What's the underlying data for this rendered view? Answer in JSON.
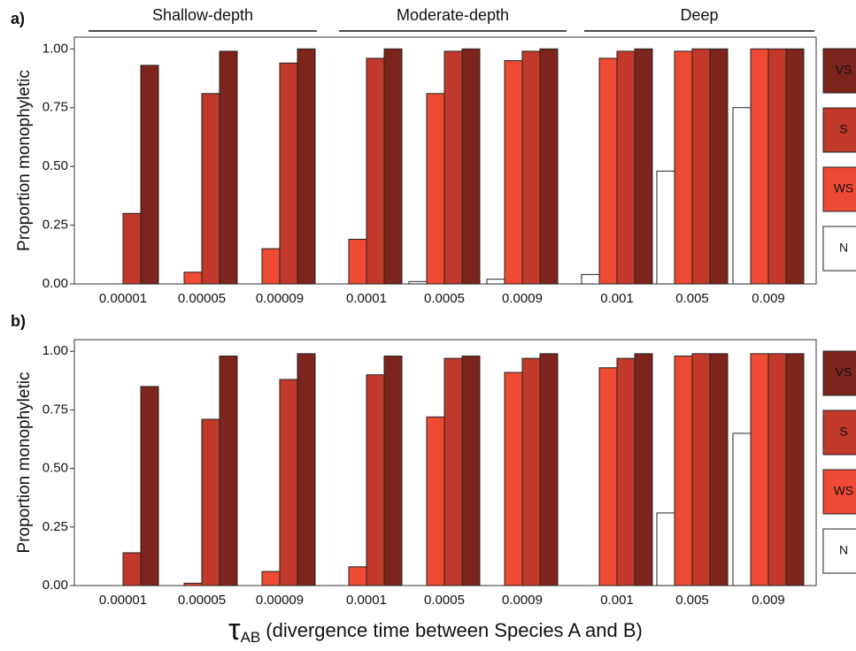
{
  "chart_data": [
    {
      "type": "bar",
      "panel_label": "a)",
      "group_labels": [
        "Shallow-depth",
        "Moderate-depth",
        "Deep"
      ],
      "y_label": "Proportion monophyletic",
      "categories": [
        "0.00001",
        "0.00005",
        "0.00009",
        "0.0001",
        "0.0005",
        "0.0009",
        "0.001",
        "0.005",
        "0.009"
      ],
      "category_colors": [
        "#3b4fa0",
        "#111111",
        "#e0282b",
        "#3b4fa0",
        "#111111",
        "#e0282b",
        "#3b4fa0",
        "#111111",
        "#e0282b"
      ],
      "series": [
        {
          "name": "N",
          "color": "#ffffff",
          "values": [
            0,
            0,
            0,
            0,
            0.01,
            0.02,
            0.04,
            0.48,
            0.75
          ]
        },
        {
          "name": "WS",
          "color": "#ef4a33",
          "values": [
            0,
            0.05,
            0.15,
            0.19,
            0.81,
            0.95,
            0.96,
            0.99,
            1.0
          ]
        },
        {
          "name": "S",
          "color": "#c0392b",
          "values": [
            0.3,
            0.81,
            0.94,
            0.96,
            0.99,
            0.99,
            0.99,
            1.0,
            1.0
          ]
        },
        {
          "name": "VS",
          "color": "#7d241c",
          "values": [
            0.93,
            0.99,
            1.0,
            1.0,
            1.0,
            1.0,
            1.0,
            1.0,
            1.0
          ]
        }
      ],
      "ylim": [
        0,
        1.05
      ],
      "yticks": [
        {
          "value": 0,
          "label": "0.00"
        },
        {
          "value": 0.25,
          "label": "0.25"
        },
        {
          "value": 0.5,
          "label": "0.50"
        },
        {
          "value": 0.75,
          "label": "0.75"
        },
        {
          "value": 1,
          "label": "1.00"
        }
      ]
    },
    {
      "type": "bar",
      "panel_label": "b)",
      "y_label": "Proportion monophyletic",
      "x_label_symbol": "τ",
      "x_label_subscript": "AB",
      "x_label": "(divergence time between Species A and B)",
      "categories": [
        "0.00001",
        "0.00005",
        "0.00009",
        "0.0001",
        "0.0005",
        "0.0009",
        "0.001",
        "0.005",
        "0.009"
      ],
      "category_colors": [
        "#3b4fa0",
        "#111111",
        "#e0282b",
        "#3b4fa0",
        "#111111",
        "#e0282b",
        "#3b4fa0",
        "#111111",
        "#e0282b"
      ],
      "series": [
        {
          "name": "N",
          "color": "#ffffff",
          "values": [
            0,
            0,
            0,
            0,
            0,
            0,
            0,
            0.31,
            0.65
          ]
        },
        {
          "name": "WS",
          "color": "#ef4a33",
          "values": [
            0,
            0.01,
            0.06,
            0.08,
            0.72,
            0.91,
            0.93,
            0.98,
            0.99
          ]
        },
        {
          "name": "S",
          "color": "#c0392b",
          "values": [
            0.14,
            0.71,
            0.88,
            0.9,
            0.97,
            0.97,
            0.97,
            0.99,
            0.99
          ]
        },
        {
          "name": "VS",
          "color": "#7d241c",
          "values": [
            0.85,
            0.98,
            0.99,
            0.98,
            0.98,
            0.99,
            0.99,
            0.99,
            0.99
          ]
        }
      ],
      "ylim": [
        0,
        1.05
      ],
      "yticks": [
        {
          "value": 0,
          "label": "0.00"
        },
        {
          "value": 0.25,
          "label": "0.25"
        },
        {
          "value": 0.5,
          "label": "0.50"
        },
        {
          "value": 0.75,
          "label": "0.75"
        },
        {
          "value": 1,
          "label": "1.00"
        }
      ]
    }
  ]
}
